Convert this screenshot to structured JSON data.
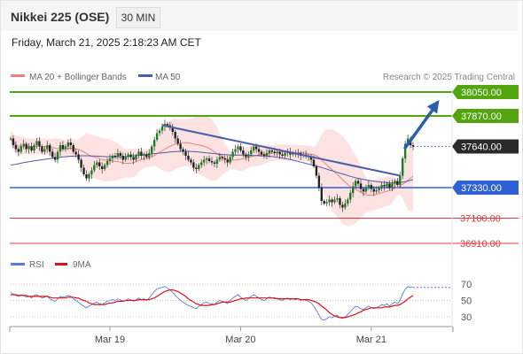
{
  "header": {
    "title": "Nikkei 225 (OSE)",
    "interval": "30 MIN",
    "datetime": "Friday, March 21, 2025 2:18:23 AM CET"
  },
  "legend_main": {
    "ma20": "MA 20 + Bollinger Bands",
    "ma50": "MA 50",
    "credit": "Research © 2025 Trading Central"
  },
  "legend_rsi": {
    "rsi": "RSI",
    "ma": "9MA"
  },
  "colors": {
    "resistance": "#52a50f",
    "current": "#2a2a2a",
    "pivot": "#2f60d6",
    "support": "#e8383d",
    "ma20": "#f08080",
    "ma50": "#4a5da8",
    "arrow": "#2b5cae",
    "band": "#fde2e2",
    "rsi": "#5b7fd6",
    "rsi_ma": "#d9121b"
  },
  "chart_data": {
    "type": "candlestick",
    "price_levels": [
      {
        "label": "38050.00",
        "value": 38050,
        "kind": "resistance"
      },
      {
        "label": "37870.00",
        "value": 37870,
        "kind": "resistance"
      },
      {
        "label": "37640.00",
        "value": 37640,
        "kind": "current"
      },
      {
        "label": "37330.00",
        "value": 37330,
        "kind": "pivot"
      },
      {
        "label": "37100.00",
        "value": 37100,
        "kind": "support"
      },
      {
        "label": "36910.00",
        "value": 36910,
        "kind": "support"
      }
    ],
    "x_ticks": [
      "Mar 19",
      "Mar 20",
      "Mar 21"
    ],
    "x_tick_index": [
      38,
      88,
      138
    ],
    "candle_count": 155,
    "closes": [
      37700,
      37650,
      37620,
      37600,
      37640,
      37660,
      37620,
      37640,
      37610,
      37650,
      37680,
      37640,
      37600,
      37620,
      37650,
      37600,
      37560,
      37540,
      37600,
      37650,
      37620,
      37640,
      37670,
      37650,
      37600,
      37580,
      37540,
      37480,
      37430,
      37400,
      37430,
      37460,
      37500,
      37520,
      37490,
      37470,
      37500,
      37530,
      37550,
      37570,
      37560,
      37590,
      37570,
      37540,
      37560,
      37580,
      37560,
      37540,
      37570,
      37600,
      37570,
      37580,
      37560,
      37590,
      37640,
      37690,
      37740,
      37760,
      37790,
      37810,
      37800,
      37780,
      37750,
      37700,
      37660,
      37620,
      37600,
      37570,
      37540,
      37520,
      37480,
      37470,
      37500,
      37520,
      37540,
      37550,
      37530,
      37520,
      37510,
      37540,
      37560,
      37550,
      37540,
      37520,
      37560,
      37600,
      37620,
      37640,
      37610,
      37580,
      37560,
      37580,
      37610,
      37640,
      37620,
      37600,
      37580,
      37570,
      37590,
      37610,
      37600,
      37590,
      37600,
      37580,
      37570,
      37590,
      37600,
      37580,
      37590,
      37580,
      37590,
      37570,
      37580,
      37570,
      37560,
      37540,
      37490,
      37420,
      37330,
      37230,
      37210,
      37220,
      37240,
      37220,
      37240,
      37250,
      37200,
      37180,
      37210,
      37240,
      37290,
      37340,
      37380,
      37360,
      37320,
      37300,
      37330,
      37350,
      37320,
      37300,
      37310,
      37330,
      37350,
      37340,
      37360,
      37330,
      37360,
      37380,
      37350,
      37420,
      37550,
      37660,
      37700,
      37650,
      37640
    ],
    "ma50": [
      37500,
      37503,
      37506,
      37510,
      37514,
      37518,
      37522,
      37525,
      37528,
      37531,
      37534,
      37537,
      37540,
      37543,
      37546,
      37549,
      37552,
      37555,
      37557,
      37559,
      37561,
      37563,
      37565,
      37566,
      37567,
      37568,
      37569,
      37570,
      37570,
      37570,
      37570,
      37569,
      37568,
      37567,
      37566,
      37565,
      37564,
      37563,
      37563,
      37563,
      37563,
      37563,
      37563,
      37563,
      37564,
      37566,
      37568,
      37570,
      37572,
      37574,
      37576,
      37578,
      37580,
      37582,
      37584,
      37586,
      37588,
      37590,
      37592,
      37594,
      37596,
      37598,
      37600,
      37602,
      37603,
      37604,
      37605,
      37605,
      37604,
      37603,
      37602,
      37600,
      37598,
      37596,
      37594,
      37592,
      37590,
      37588,
      37586,
      37584,
      37582,
      37580,
      37578,
      37577,
      37576,
      37575,
      37575,
      37575,
      37575,
      37575,
      37575,
      37574,
      37573,
      37572,
      37571,
      37570,
      37569,
      37568,
      37567,
      37566,
      37564,
      37562,
      37559,
      37556,
      37553,
      37549,
      37545,
      37541,
      37537,
      37532,
      37527,
      37522,
      37517,
      37512,
      37507,
      37502,
      37497,
      37492,
      37487,
      37481,
      37475,
      37469,
      37463,
      37457,
      37451,
      37445,
      37439,
      37433,
      37427,
      37421,
      37415,
      37410,
      37405,
      37400,
      37396,
      37392,
      37388,
      37384,
      37380,
      37378,
      37376,
      37374,
      37372,
      37370,
      37368,
      37366,
      37365,
      37365,
      37366,
      37368,
      37371,
      37375,
      37380,
      37385,
      37390
    ],
    "trendline": {
      "from_index": 58,
      "from_value": 37800,
      "to_index": 149,
      "to_value": 37420
    },
    "forecast_arrow": {
      "from_index": 151,
      "from_value": 37630,
      "to_index": 164,
      "to_value": 37990
    },
    "rsi": {
      "ticks": [
        70,
        50,
        30
      ],
      "ylim": [
        15,
        80
      ],
      "values": [
        60,
        58,
        56,
        55,
        57,
        56,
        54,
        55,
        53,
        56,
        57,
        55,
        53,
        54,
        55,
        52,
        50,
        49,
        52,
        55,
        54,
        55,
        56,
        55,
        52,
        50,
        48,
        45,
        43,
        41,
        43,
        45,
        47,
        48,
        46,
        45,
        47,
        49,
        50,
        51,
        50,
        52,
        51,
        49,
        50,
        52,
        51,
        49,
        51,
        53,
        51,
        52,
        50,
        53,
        57,
        61,
        64,
        65,
        66,
        67,
        65,
        63,
        60,
        56,
        53,
        50,
        48,
        46,
        44,
        43,
        41,
        40,
        43,
        45,
        47,
        48,
        46,
        46,
        45,
        48,
        50,
        49,
        48,
        46,
        50,
        53,
        55,
        57,
        54,
        52,
        50,
        52,
        55,
        57,
        55,
        53,
        51,
        50,
        52,
        54,
        53,
        52,
        53,
        51,
        50,
        52,
        53,
        51,
        52,
        51,
        52,
        50,
        51,
        50,
        49,
        47,
        43,
        38,
        32,
        27,
        26,
        28,
        30,
        29,
        31,
        32,
        29,
        28,
        30,
        33,
        36,
        40,
        43,
        42,
        40,
        39,
        41,
        43,
        41,
        40,
        41,
        43,
        45,
        44,
        46,
        43,
        46,
        48,
        46,
        50,
        58,
        64,
        67,
        66,
        66
      ],
      "ma9": [
        57,
        57,
        57,
        56,
        56,
        56,
        56,
        55,
        55,
        55,
        55,
        55,
        55,
        55,
        55,
        54,
        53,
        53,
        53,
        53,
        53,
        53,
        54,
        54,
        54,
        53,
        53,
        51,
        50,
        49,
        47,
        46,
        45,
        45,
        45,
        45,
        45,
        46,
        47,
        47,
        48,
        49,
        49,
        49,
        50,
        50,
        50,
        50,
        50,
        51,
        51,
        51,
        51,
        51,
        52,
        53,
        55,
        57,
        59,
        61,
        62,
        63,
        63,
        62,
        61,
        59,
        57,
        55,
        52,
        50,
        48,
        46,
        45,
        44,
        44,
        44,
        44,
        45,
        45,
        46,
        47,
        48,
        48,
        48,
        48,
        49,
        50,
        51,
        52,
        52,
        53,
        53,
        53,
        53,
        53,
        53,
        53,
        53,
        53,
        53,
        53,
        53,
        52,
        52,
        52,
        52,
        52,
        52,
        52,
        52,
        52,
        51,
        51,
        51,
        51,
        50,
        49,
        48,
        46,
        43,
        41,
        38,
        35,
        33,
        31,
        30,
        29,
        29,
        29,
        30,
        31,
        32,
        33,
        35,
        36,
        38,
        39,
        40,
        41,
        41,
        41,
        41,
        41,
        42,
        42,
        42,
        43,
        44,
        44,
        45,
        47,
        49,
        52,
        54,
        56
      ]
    }
  }
}
